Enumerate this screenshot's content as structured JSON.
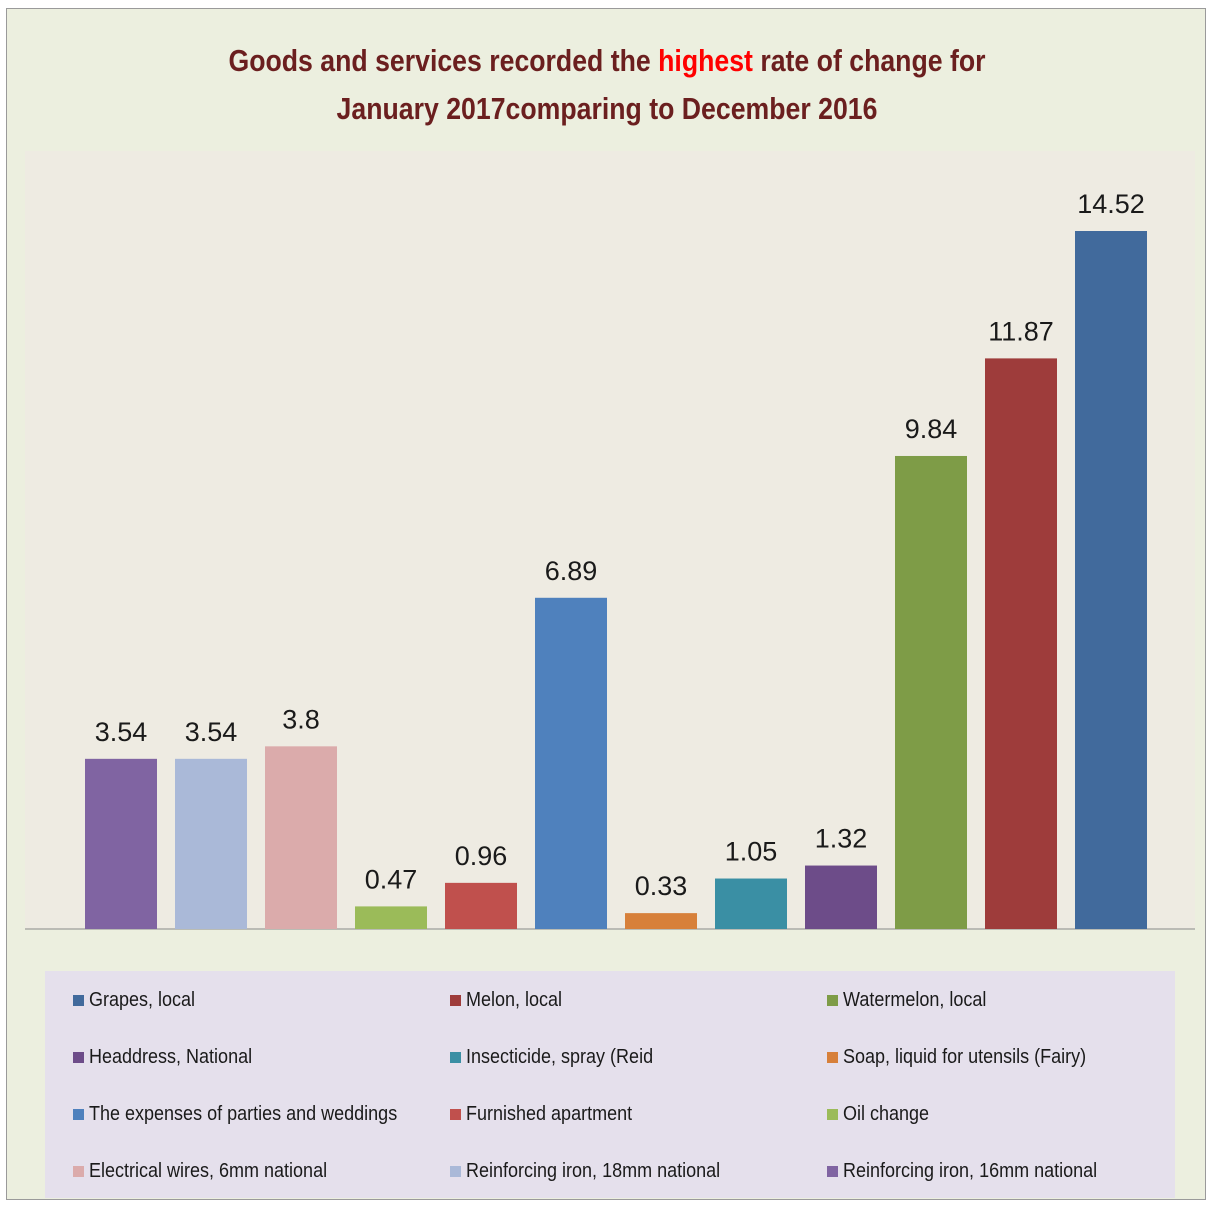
{
  "chart_data": {
    "type": "bar",
    "title_parts": {
      "before": "Goods and services recorded the ",
      "highlight": "highest",
      "after_line1": " rate of change for",
      "line2": "January 2017comparing to December 2016"
    },
    "title": "Goods and services recorded the highest rate of change for January 2017comparing to December 2016",
    "xlabel": "",
    "ylabel": "",
    "ylim": [
      0,
      16
    ],
    "grid": false,
    "legend_placement": "bottom",
    "categories": [
      "Reinforcing iron, 16mm national",
      "Reinforcing iron, 18mm national",
      "Electrical wires, 6mm national",
      "Oil change",
      "Furnished apartment",
      "The expenses of parties and weddings",
      "Soap, liquid for utensils (Fairy)",
      "Insecticide, spray (Reid",
      "Headdress, National",
      "Watermelon, local",
      "Melon, local",
      "Grapes, local"
    ],
    "values": [
      3.54,
      3.54,
      3.8,
      0.47,
      0.96,
      6.89,
      0.33,
      1.05,
      1.32,
      9.84,
      11.87,
      14.52
    ],
    "value_labels": [
      "3.54",
      "3.54",
      "3.8",
      "0.47",
      "0.96",
      "6.89",
      "0.33",
      "1.05",
      "1.32",
      "9.84",
      "11.87",
      "14.52"
    ],
    "colors": [
      "#8064a2",
      "#aab9d8",
      "#dbabab",
      "#9bbb59",
      "#c0504d",
      "#4f81bd",
      "#d7803a",
      "#3a8fa4",
      "#6d4c89",
      "#7e9c47",
      "#9e3c3b",
      "#416a9c"
    ],
    "legend_order": [
      11,
      10,
      9,
      8,
      7,
      6,
      5,
      4,
      3,
      2,
      1,
      0
    ]
  }
}
